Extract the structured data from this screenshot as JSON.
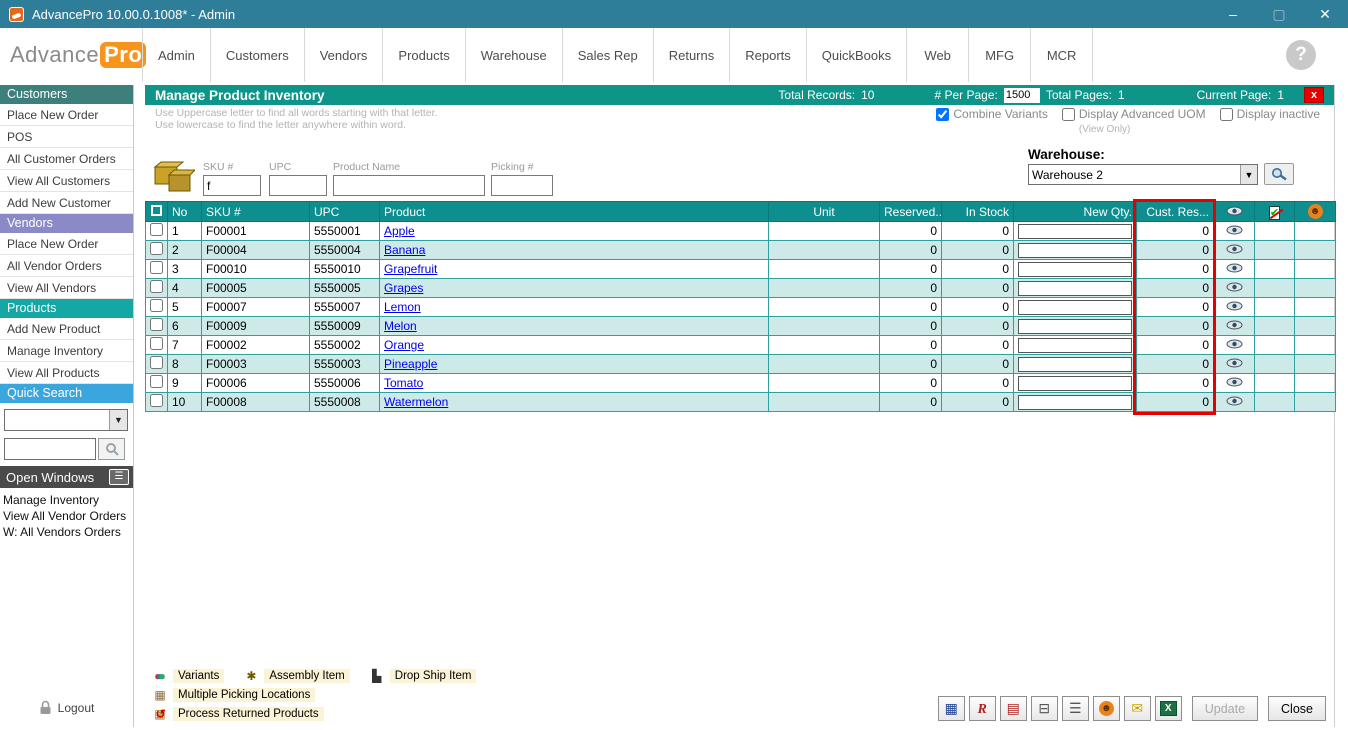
{
  "window": {
    "title": "AdvancePro 10.00.0.1008*  - Admin",
    "minimize": "–",
    "maximize": "▢",
    "close": "✕"
  },
  "logo": {
    "part1": "Advance",
    "part2": "Pro"
  },
  "nav": {
    "tabs": [
      "Admin",
      "Customers",
      "Vendors",
      "Products",
      "Warehouse",
      "Sales Rep",
      "Returns",
      "Reports",
      "QuickBooks",
      "Web",
      "MFG",
      "MCR"
    ],
    "help": "?"
  },
  "sidebar": {
    "sections": [
      {
        "id": "customers",
        "label": "Customers",
        "color": "#3D7F7B",
        "items": [
          "Place New Order",
          "POS",
          "All Customer Orders",
          "View All Customers",
          "Add New Customer"
        ]
      },
      {
        "id": "vendors",
        "label": "Vendors",
        "color": "#8B89C6",
        "items": [
          "Place New Order",
          "All Vendor Orders",
          "View All Vendors"
        ]
      },
      {
        "id": "products",
        "label": "Products",
        "color": "#14A7A3",
        "items": [
          "Add New Product",
          "Manage Inventory",
          "View All Products"
        ]
      }
    ],
    "quick_search": {
      "label": "Quick Search",
      "color": "#3BA6DE"
    },
    "open_windows": {
      "label": "Open Windows",
      "items": [
        "Manage Inventory",
        "View All Vendor Orders",
        "W: All Vendors Orders"
      ]
    },
    "logout": "Logout"
  },
  "header": {
    "title": "Manage Product Inventory",
    "total_records_label": "Total Records:",
    "total_records": "10",
    "per_page_label": "# Per Page:",
    "per_page": "1500",
    "total_pages_label": "Total Pages:",
    "total_pages": "1",
    "current_page_label": "Current Page:",
    "current_page": "1",
    "close_x": "x"
  },
  "hints": {
    "line1": "Use Uppercase letter to find all words starting with that letter.",
    "line2": "Use lowercase to find the letter anywhere within word."
  },
  "options": {
    "combine_variants": {
      "label": "Combine Variants",
      "checked": true
    },
    "display_advanced_uom": {
      "label": "Display Advanced UOM",
      "sub": "(View Only)",
      "checked": false
    },
    "display_inactive": {
      "label": "Display inactive",
      "checked": false
    }
  },
  "filters": {
    "sku": {
      "label": "SKU #",
      "value": "f"
    },
    "upc": {
      "label": "UPC",
      "value": ""
    },
    "product_name": {
      "label": "Product Name",
      "value": ""
    },
    "picking": {
      "label": "Picking #",
      "value": ""
    }
  },
  "warehouse": {
    "label": "Warehouse:",
    "selected": "Warehouse 2"
  },
  "table": {
    "columns": [
      "",
      "No",
      "SKU #",
      "UPC",
      "Product",
      "Unit",
      "Reserved..",
      "In Stock",
      "New Qty.",
      "Cust. Res...",
      "eye-icon",
      "checkbox-column-icon",
      "vendor-column-icon"
    ],
    "highlight_color": "#E60000",
    "row_icon": "eye-icon",
    "rows": [
      {
        "no": "1",
        "sku": "F00001",
        "upc": "5550001",
        "product": "Apple",
        "unit": "",
        "reserved": "0",
        "in_stock": "0",
        "new_qty": "",
        "cust_res": "0"
      },
      {
        "no": "2",
        "sku": "F00004",
        "upc": "5550004",
        "product": "Banana",
        "unit": "",
        "reserved": "0",
        "in_stock": "0",
        "new_qty": "",
        "cust_res": "0"
      },
      {
        "no": "3",
        "sku": "F00010",
        "upc": "5550010",
        "product": "Grapefruit",
        "unit": "",
        "reserved": "0",
        "in_stock": "0",
        "new_qty": "",
        "cust_res": "0"
      },
      {
        "no": "4",
        "sku": "F00005",
        "upc": "5550005",
        "product": "Grapes",
        "unit": "",
        "reserved": "0",
        "in_stock": "0",
        "new_qty": "",
        "cust_res": "0"
      },
      {
        "no": "5",
        "sku": "F00007",
        "upc": "5550007",
        "product": "Lemon",
        "unit": "",
        "reserved": "0",
        "in_stock": "0",
        "new_qty": "",
        "cust_res": "0"
      },
      {
        "no": "6",
        "sku": "F00009",
        "upc": "5550009",
        "product": "Melon",
        "unit": "",
        "reserved": "0",
        "in_stock": "0",
        "new_qty": "",
        "cust_res": "0"
      },
      {
        "no": "7",
        "sku": "F00002",
        "upc": "5550002",
        "product": "Orange",
        "unit": "",
        "reserved": "0",
        "in_stock": "0",
        "new_qty": "",
        "cust_res": "0"
      },
      {
        "no": "8",
        "sku": "F00003",
        "upc": "5550003",
        "product": "Pineapple",
        "unit": "",
        "reserved": "0",
        "in_stock": "0",
        "new_qty": "",
        "cust_res": "0"
      },
      {
        "no": "9",
        "sku": "F00006",
        "upc": "5550006",
        "product": "Tomato",
        "unit": "",
        "reserved": "0",
        "in_stock": "0",
        "new_qty": "",
        "cust_res": "0"
      },
      {
        "no": "10",
        "sku": "F00008",
        "upc": "5550008",
        "product": "Watermelon",
        "unit": "",
        "reserved": "0",
        "in_stock": "0",
        "new_qty": "",
        "cust_res": "0"
      }
    ]
  },
  "legend": {
    "rows": [
      [
        {
          "icon": "variants-icon",
          "label": "Variants"
        },
        {
          "icon": "assembly-item-icon",
          "label": "Assembly Item"
        },
        {
          "icon": "drop-ship-item-icon",
          "label": "Drop Ship Item"
        }
      ],
      [
        {
          "icon": "multiple-picking-locations-icon",
          "label": "Multiple Picking Locations"
        }
      ],
      [
        {
          "icon": "process-returned-products-icon",
          "label": "Process Returned Products"
        }
      ]
    ]
  },
  "toolbar": {
    "icons": [
      "grid-search-icon",
      "report-icon",
      "export-doc-icon",
      "print-icon",
      "archive-icon",
      "vendor-cart-icon",
      "lock-icon",
      "excel-export-icon"
    ],
    "update_label": "Update",
    "close_label": "Close"
  }
}
